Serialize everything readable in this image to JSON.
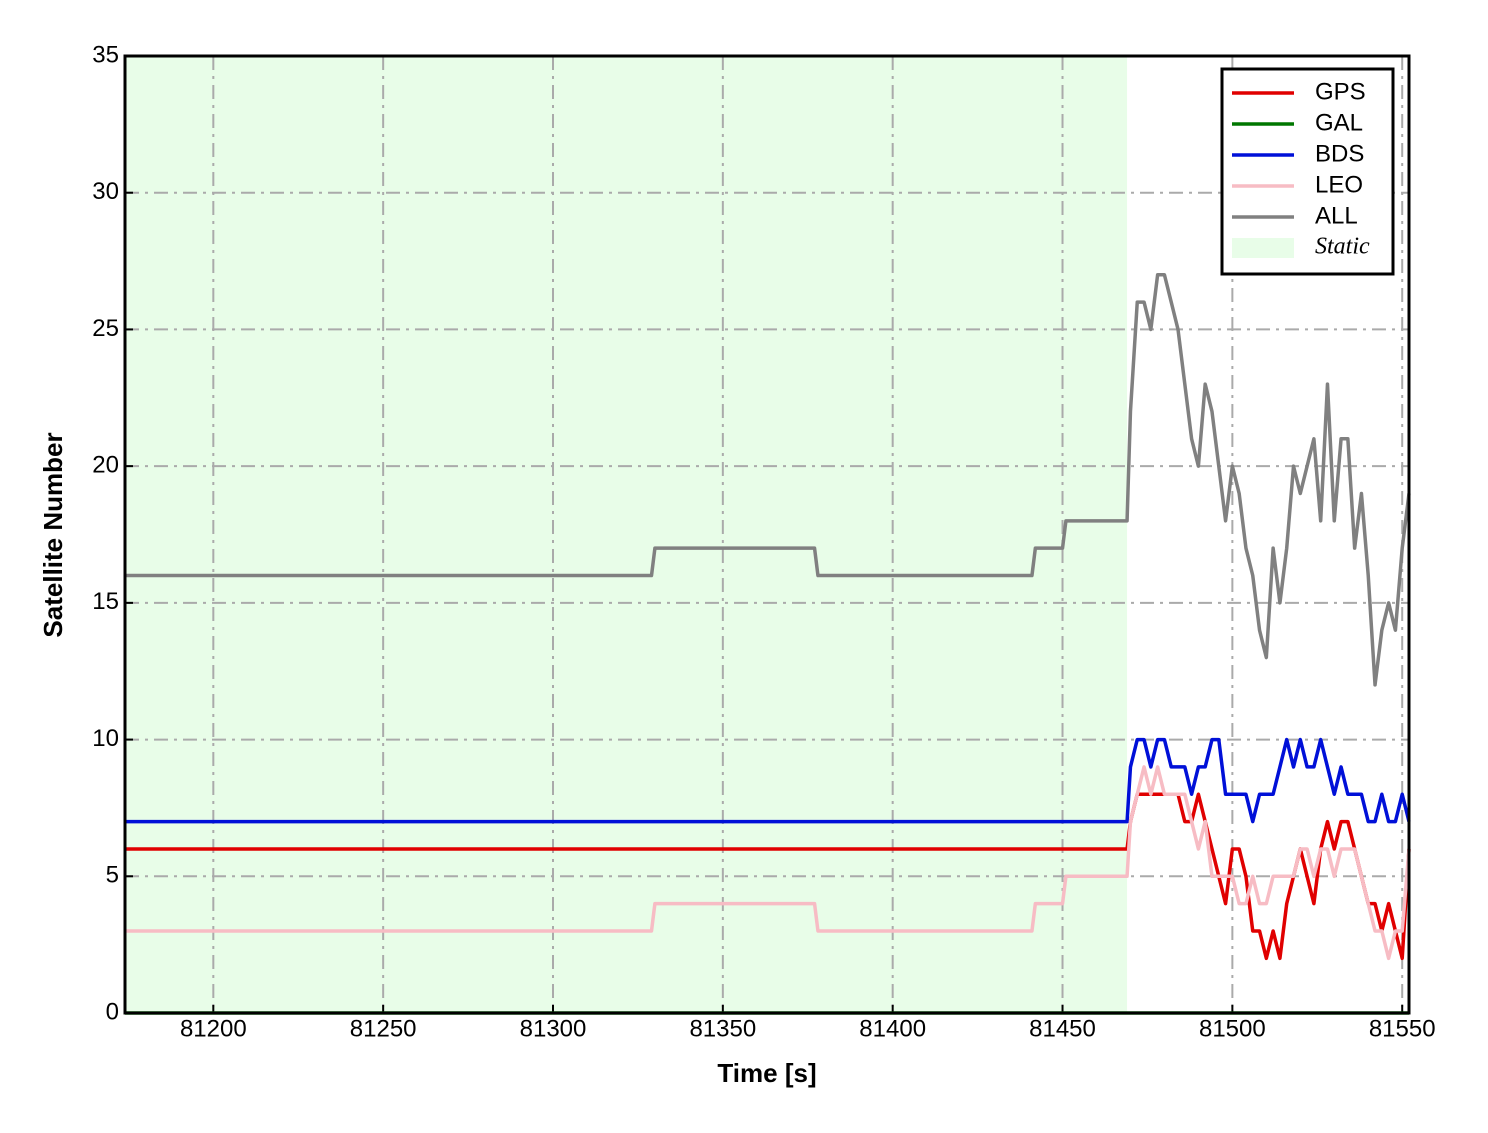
{
  "chart_data": {
    "type": "line",
    "xlabel": "Time [s]",
    "ylabel": "Satellite Number",
    "x": [
      81174,
      81329,
      81330,
      81377,
      81378,
      81441,
      81442,
      81450,
      81451,
      81469,
      81470,
      81472,
      81474,
      81476,
      81478,
      81480,
      81482,
      81484,
      81486,
      81488,
      81490,
      81492,
      81494,
      81496,
      81498,
      81500,
      81502,
      81504,
      81506,
      81508,
      81510,
      81512,
      81514,
      81516,
      81518,
      81520,
      81522,
      81524,
      81526,
      81528,
      81530,
      81532,
      81534,
      81536,
      81538,
      81540,
      81542,
      81544,
      81546,
      81548,
      81550,
      81552
    ],
    "series": [
      {
        "name": "GPS",
        "color": "#e00000",
        "values": [
          6,
          6,
          6,
          6,
          6,
          6,
          6,
          6,
          6,
          6,
          7,
          8,
          8,
          8,
          8,
          8,
          8,
          8,
          7,
          7,
          8,
          7,
          6,
          5,
          4,
          6,
          6,
          5,
          3,
          3,
          2,
          3,
          2,
          4,
          5,
          6,
          5,
          4,
          6,
          7,
          6,
          7,
          7,
          6,
          5,
          4,
          4,
          3,
          4,
          3,
          2,
          6
        ]
      },
      {
        "name": "GAL",
        "color": "#007700",
        "values": [
          0,
          0,
          0,
          0,
          0,
          0,
          0,
          0,
          0,
          0,
          0,
          0,
          0,
          0,
          0,
          0,
          0,
          0,
          0,
          0,
          0,
          0,
          0,
          0,
          0,
          0,
          0,
          0,
          0,
          0,
          0,
          0,
          0,
          0,
          0,
          0,
          0,
          0,
          0,
          0,
          0,
          0,
          0,
          0,
          0,
          0,
          0,
          0,
          0,
          0,
          0,
          0
        ]
      },
      {
        "name": "BDS",
        "color": "#0010d8",
        "values": [
          7,
          7,
          7,
          7,
          7,
          7,
          7,
          7,
          7,
          7,
          9,
          10,
          10,
          9,
          10,
          10,
          9,
          9,
          9,
          8,
          9,
          9,
          10,
          10,
          8,
          8,
          8,
          8,
          7,
          8,
          8,
          8,
          9,
          10,
          9,
          10,
          9,
          9,
          10,
          9,
          8,
          9,
          8,
          8,
          8,
          7,
          7,
          8,
          7,
          7,
          8,
          7
        ]
      },
      {
        "name": "LEO",
        "color": "#f7bcc4",
        "values": [
          3,
          3,
          4,
          4,
          3,
          3,
          4,
          4,
          5,
          5,
          7,
          8,
          9,
          8,
          9,
          8,
          8,
          8,
          8,
          7,
          6,
          7,
          5,
          5,
          5,
          5,
          4,
          4,
          5,
          4,
          4,
          5,
          5,
          5,
          5,
          6,
          6,
          5,
          6,
          6,
          5,
          6,
          6,
          6,
          5,
          4,
          3,
          3,
          2,
          3,
          3,
          6
        ]
      },
      {
        "name": "ALL",
        "color": "#808080",
        "values": [
          16,
          16,
          17,
          17,
          16,
          16,
          17,
          17,
          18,
          18,
          22,
          26,
          26,
          25,
          27,
          27,
          26,
          25,
          23,
          21,
          20,
          23,
          22,
          20,
          18,
          20,
          19,
          17,
          16,
          14,
          13,
          17,
          15,
          17,
          20,
          19,
          20,
          21,
          18,
          23,
          18,
          21,
          21,
          17,
          19,
          16,
          12,
          14,
          15,
          14,
          17,
          19
        ]
      }
    ],
    "shaded_region": {
      "label": "Static",
      "x": [
        81174,
        81469
      ],
      "color": "#e8fde8"
    },
    "xlim": [
      81174,
      81552
    ],
    "xticks": [
      81200,
      81250,
      81300,
      81350,
      81400,
      81450,
      81500,
      81550
    ],
    "ylim": [
      0,
      35
    ],
    "yticks": [
      0,
      5,
      10,
      15,
      20,
      25,
      30,
      35
    ],
    "grid": true,
    "legend": "upper right"
  }
}
